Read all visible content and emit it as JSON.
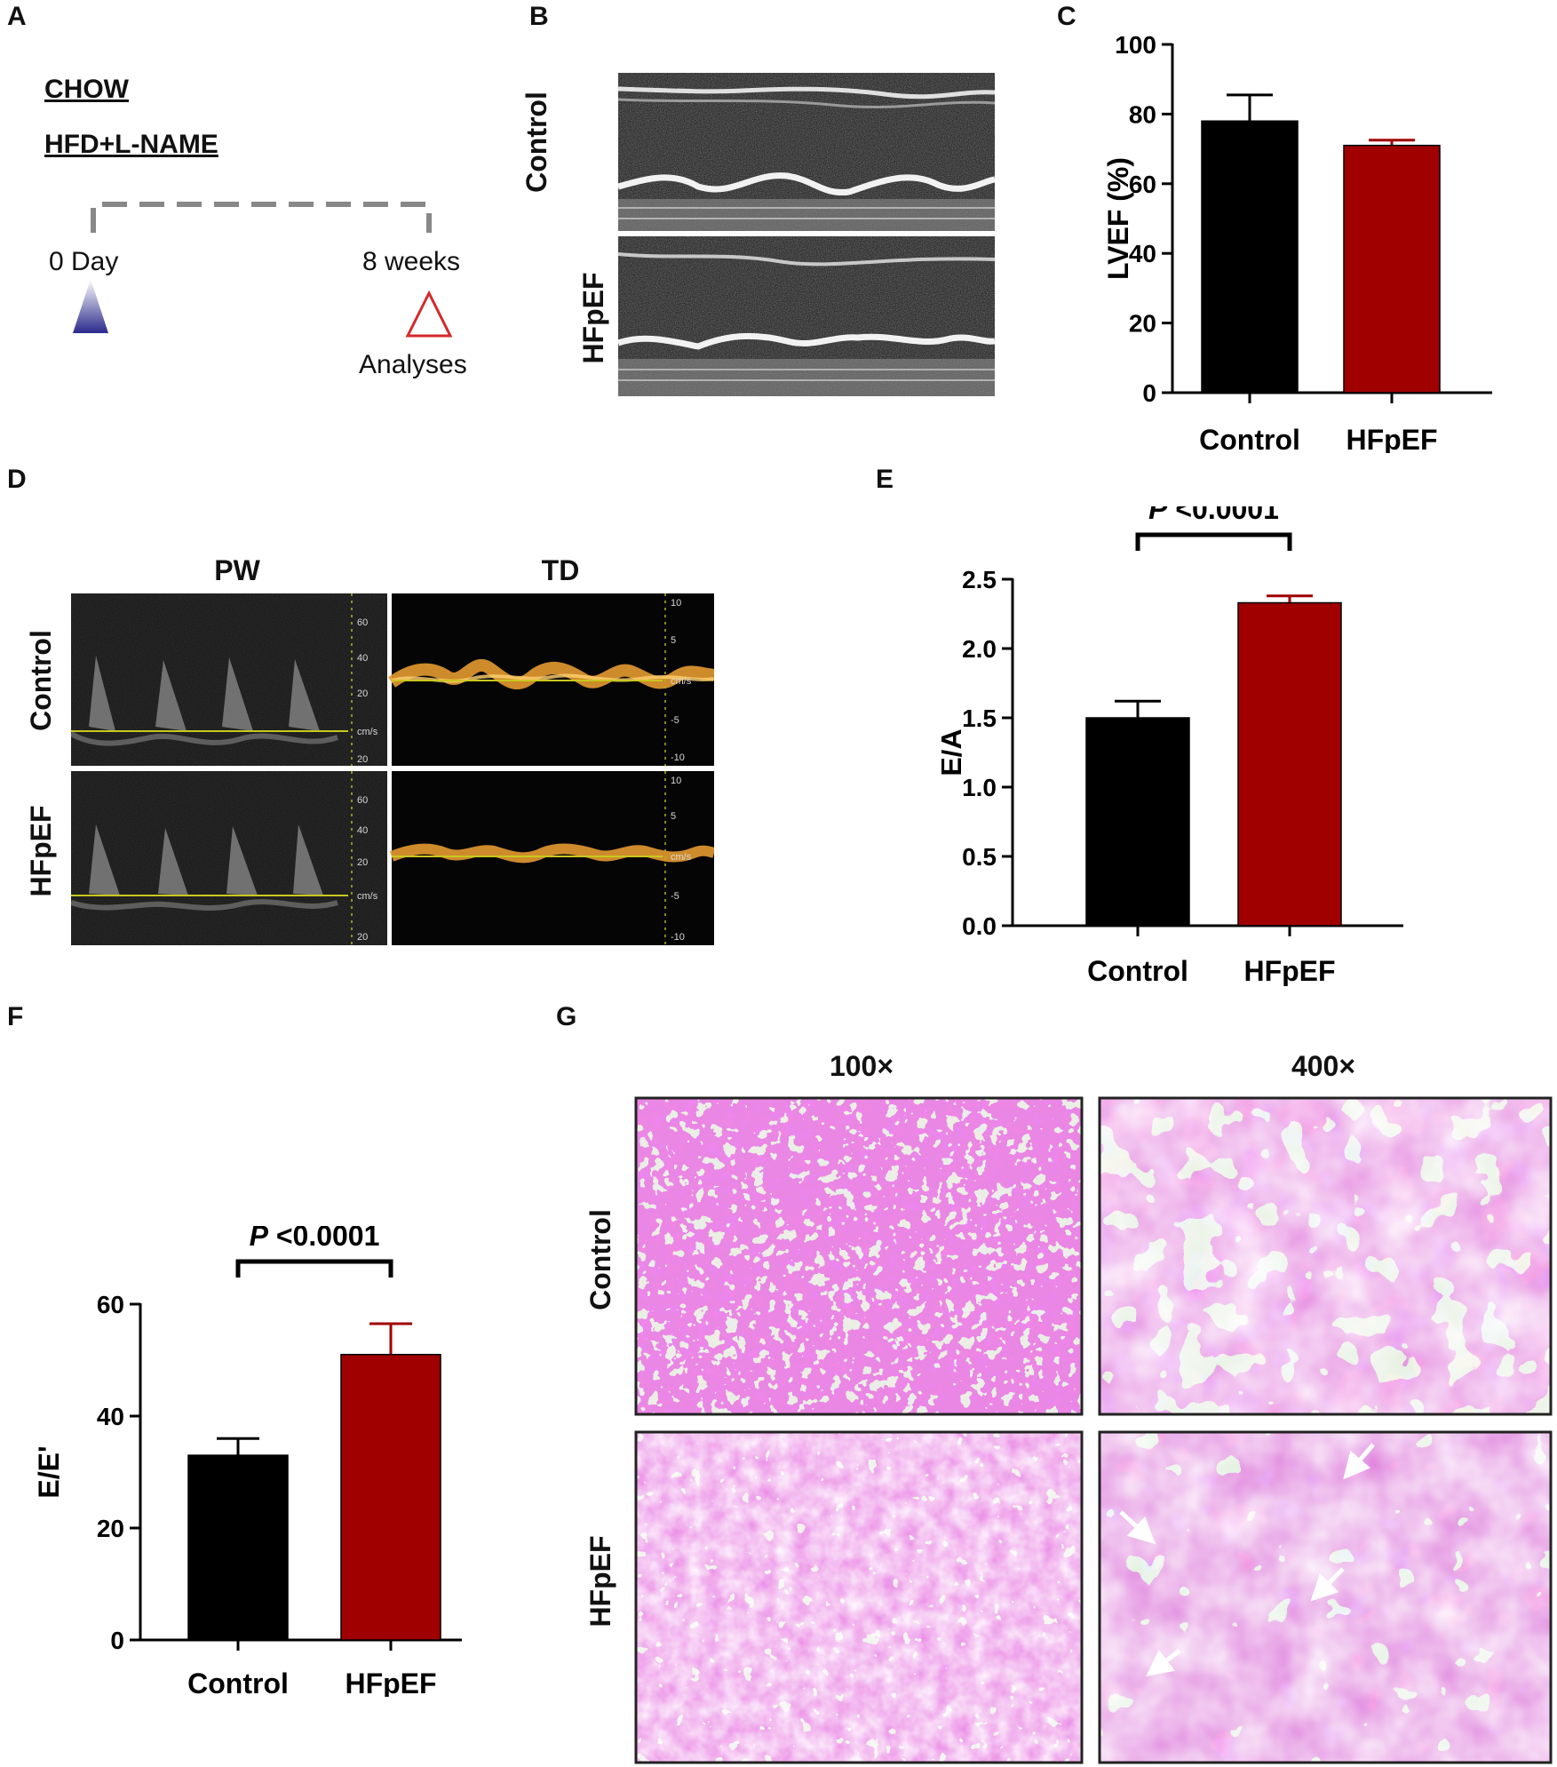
{
  "panels": {
    "A": {
      "label": "A",
      "groups": [
        "CHOW",
        "HFD+L-NAME"
      ],
      "start_label": "0 Day",
      "end_label": "8 weeks",
      "analyses_label": "Analyses",
      "colors": {
        "start_marker": "#2a2a8c",
        "end_marker": "#d42a2a",
        "timeline": "#888888"
      }
    },
    "B": {
      "label": "B",
      "row_labels": [
        "Control",
        "HFpEF"
      ]
    },
    "C": {
      "label": "C"
    },
    "D": {
      "label": "D",
      "column_titles": [
        "PW",
        "TD"
      ],
      "row_labels": [
        "Control",
        "HFpEF"
      ],
      "pw_ticks": [
        "60",
        "40",
        "20",
        "cm/s",
        "20"
      ],
      "td_ticks": [
        "10",
        "5",
        "cm/s",
        "-5",
        "-10"
      ]
    },
    "E": {
      "label": "E"
    },
    "F": {
      "label": "F"
    },
    "G": {
      "label": "G",
      "column_titles": [
        "100×",
        "400×"
      ],
      "row_labels": [
        "Control",
        "HFpEF"
      ]
    }
  },
  "colors": {
    "control": "#000000",
    "hfpef": "#a00000",
    "stain": "#d23cc8",
    "stain_bg": "#dcdcd6"
  },
  "chart_data": [
    {
      "panel": "C",
      "type": "bar",
      "categories": [
        "Control",
        "HFpEF"
      ],
      "values": [
        78,
        71
      ],
      "errors": [
        7.5,
        1.5
      ],
      "ylabel": "LVEF (%)",
      "ylim": [
        0,
        100
      ],
      "yticks": [
        "0",
        "20",
        "40",
        "60",
        "80",
        "100"
      ]
    },
    {
      "panel": "E",
      "type": "bar",
      "categories": [
        "Control",
        "HFpEF"
      ],
      "values": [
        1.5,
        2.33
      ],
      "errors": [
        0.12,
        0.05
      ],
      "ylabel": "E/A",
      "ylim": [
        0,
        2.5
      ],
      "yticks": [
        "0.0",
        "0.5",
        "1.0",
        "1.5",
        "2.0",
        "2.5"
      ],
      "annotation": {
        "p": "P",
        "text": " <0.0001"
      }
    },
    {
      "panel": "F",
      "type": "bar",
      "categories": [
        "Control",
        "HFpEF"
      ],
      "values": [
        33,
        51
      ],
      "errors": [
        3,
        5.5
      ],
      "ylabel": "E/E'",
      "ylim": [
        0,
        60
      ],
      "yticks": [
        "0",
        "20",
        "40",
        "60"
      ],
      "annotation": {
        "p": "P",
        "text": " <0.0001"
      }
    }
  ]
}
